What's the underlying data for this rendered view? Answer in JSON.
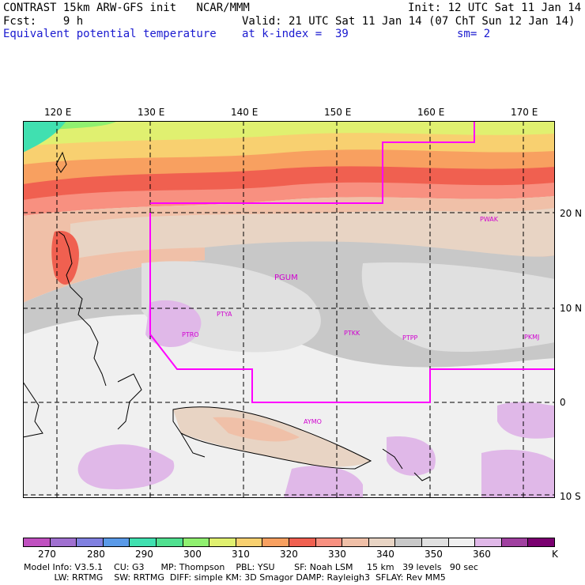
{
  "header": {
    "line1_left": "CONTRAST 15km ARW-GFS init   NCAR/MMM",
    "line1_right": "Init: 12 UTC Sat 11 Jan 14",
    "line2_left": "Fcst:    9 h",
    "line2_right": "Valid: 21 UTC Sat 11 Jan 14 (07 ChT Sun 12 Jan 14)",
    "line3_left": "Equivalent potential temperature",
    "line3_mid": "at k-index =  39",
    "line3_right": "sm= 2"
  },
  "axes": {
    "lon_labels": [
      "120 E",
      "130 E",
      "140 E",
      "150 E",
      "160 E",
      "170 E"
    ],
    "lat_labels": [
      "20 N",
      "10 N",
      "0",
      "10 S"
    ]
  },
  "stations": [
    "PTYA",
    "PTRO",
    "PGUM",
    "PWAK",
    "PTKK",
    "PTPP",
    "PKMJ",
    "AYMO"
  ],
  "colorbar": {
    "unit": "K",
    "labels": [
      "270",
      "280",
      "290",
      "300",
      "310",
      "320",
      "330",
      "340",
      "350",
      "360"
    ],
    "colors": [
      "#c050c0",
      "#a070d0",
      "#8080e0",
      "#5a9ae8",
      "#40e0b0",
      "#50e090",
      "#90f070",
      "#e0f070",
      "#f8d070",
      "#f8a060",
      "#f06050",
      "#f89080",
      "#f0c0a8",
      "#e8d4c4",
      "#c8c8c8",
      "#e0e0e0",
      "#f0f0f0",
      "#e0b8e8",
      "#a040a0",
      "#7a0070"
    ]
  },
  "footer": {
    "line1": "Model Info: V3.5.1    CU: G3      MP: Thompson    PBL: YSU       SF: Noah LSM     15 km   39 levels   90 sec",
    "line2": "           LW: RRTMG    SW: RRTMG  DIFF: simple KM: 3D Smagor DAMP: Rayleigh3  SFLAY: Rev MM5"
  }
}
